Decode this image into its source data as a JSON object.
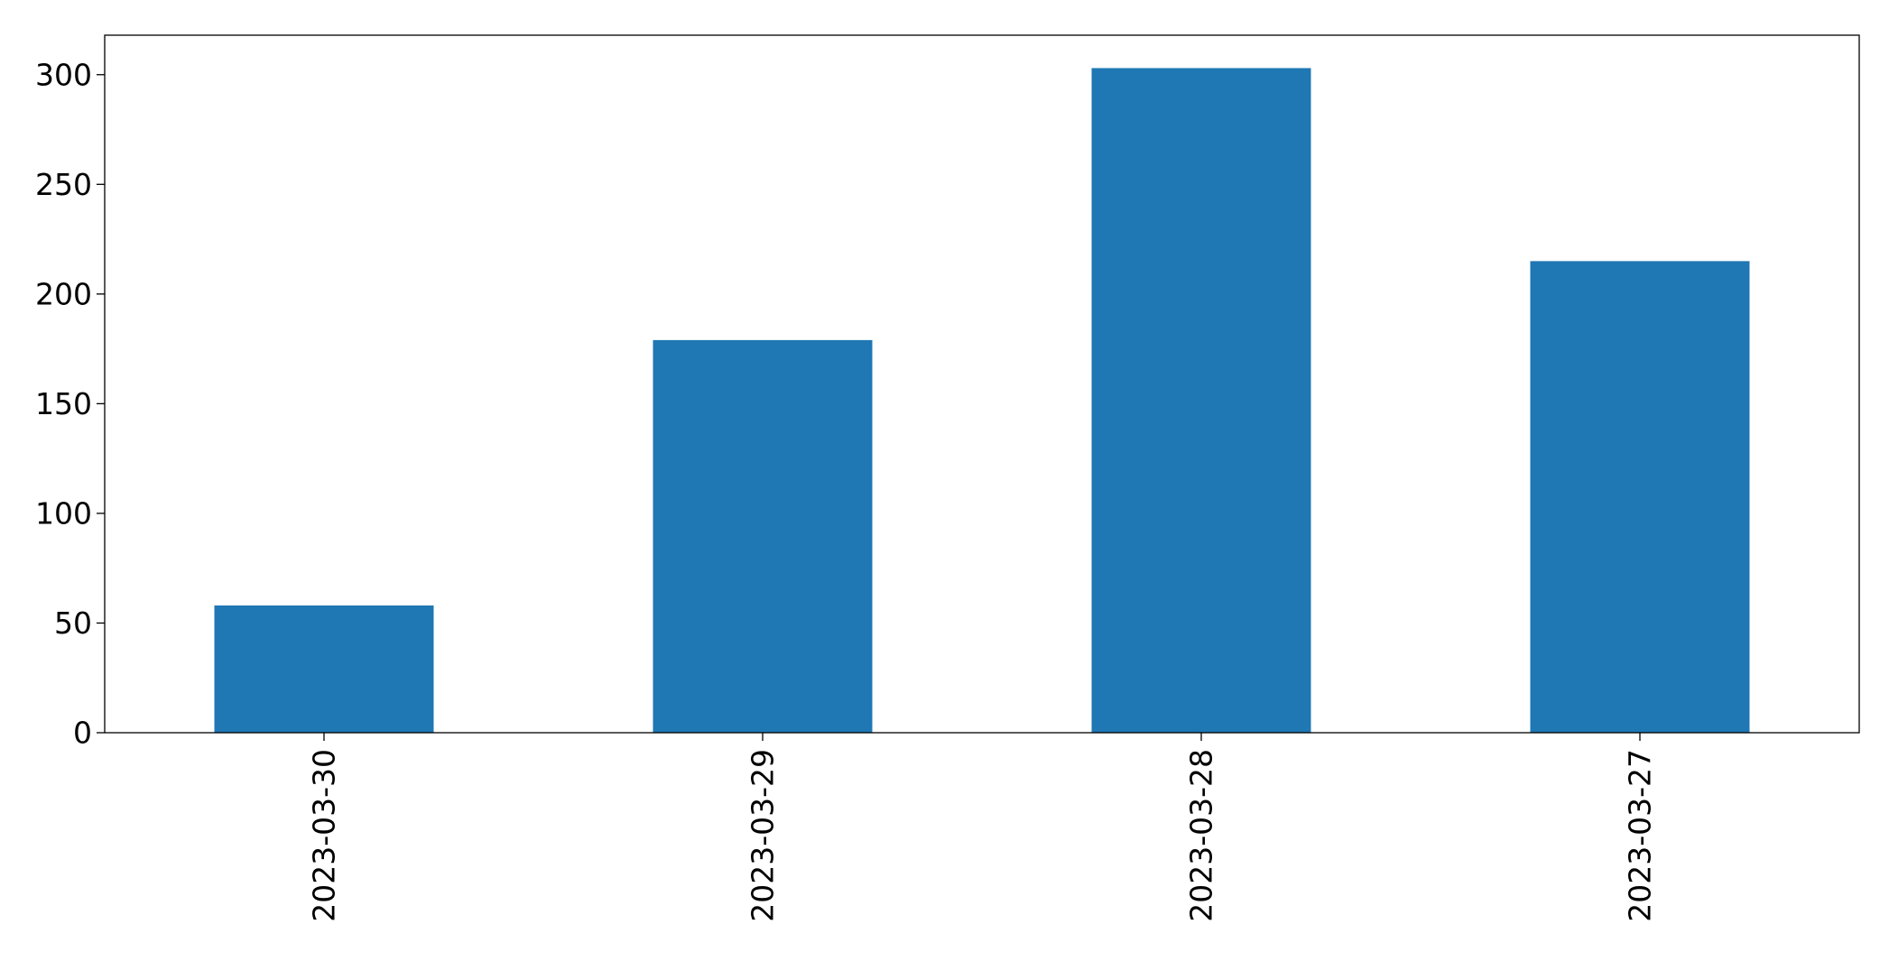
{
  "chart_data": {
    "type": "bar",
    "title": "",
    "xlabel": "",
    "ylabel": "",
    "categories": [
      "2023-03-30",
      "2023-03-29",
      "2023-03-28",
      "2023-03-27"
    ],
    "values": [
      58,
      179,
      303,
      215
    ],
    "ylim": [
      0,
      318
    ],
    "yticks": [
      0,
      50,
      100,
      150,
      200,
      250,
      300
    ],
    "bar_color": "#1f77b4",
    "axis_color": "#000000",
    "grid": false,
    "legend": "none"
  }
}
